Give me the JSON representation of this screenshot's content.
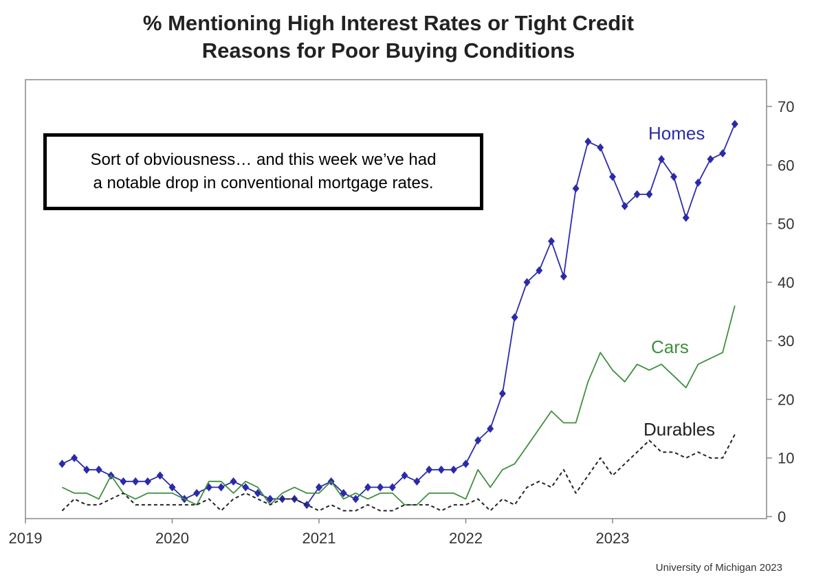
{
  "title_line1": "% Mentioning High Interest Rates or Tight Credit",
  "title_line2": "Reasons for Poor Buying Conditions",
  "annotation_line1": "Sort of obviousness… and this week we’ve had",
  "annotation_line2": "a notable drop in conventional mortgage rates.",
  "credit": "University of Michigan 2023",
  "colors": {
    "homes": "#2b2ba8",
    "cars": "#3f8f3f",
    "durables": "#222222",
    "axis": "#888888"
  },
  "chart_data": {
    "type": "line",
    "x_ticks": [
      "2019",
      "2020",
      "2021",
      "2022",
      "2023"
    ],
    "y_ticks": [
      0,
      10,
      20,
      30,
      40,
      50,
      60,
      70
    ],
    "ylim": [
      0,
      70
    ],
    "xlim": [
      2019.0,
      2024.0
    ],
    "y_axis_side": "right",
    "grid": false,
    "series": [
      {
        "name": "Homes",
        "style": "solid-with-markers",
        "x": [
          2019.25,
          2019.333,
          2019.417,
          2019.5,
          2019.583,
          2019.667,
          2019.75,
          2019.833,
          2019.917,
          2020.0,
          2020.083,
          2020.167,
          2020.25,
          2020.333,
          2020.417,
          2020.5,
          2020.583,
          2020.667,
          2020.75,
          2020.833,
          2020.917,
          2021.0,
          2021.083,
          2021.167,
          2021.25,
          2021.333,
          2021.417,
          2021.5,
          2021.583,
          2021.667,
          2021.75,
          2021.833,
          2021.917,
          2022.0,
          2022.083,
          2022.167,
          2022.25,
          2022.333,
          2022.417,
          2022.5,
          2022.583,
          2022.667,
          2022.75,
          2022.833,
          2022.917,
          2023.0,
          2023.083,
          2023.167,
          2023.25,
          2023.333,
          2023.417,
          2023.5,
          2023.583,
          2023.667,
          2023.75,
          2023.833
        ],
        "values": [
          9,
          10,
          8,
          8,
          7,
          6,
          6,
          6,
          7,
          5,
          3,
          4,
          5,
          5,
          6,
          5,
          4,
          3,
          3,
          3,
          2,
          5,
          6,
          4,
          3,
          5,
          5,
          5,
          7,
          6,
          8,
          8,
          8,
          9,
          13,
          15,
          21,
          34,
          40,
          42,
          47,
          41,
          56,
          64,
          63,
          58,
          53,
          55,
          55,
          61,
          58,
          51,
          57,
          61,
          62,
          67
        ]
      },
      {
        "name": "Cars",
        "style": "solid",
        "x": [
          2019.25,
          2019.333,
          2019.417,
          2019.5,
          2019.583,
          2019.667,
          2019.75,
          2019.833,
          2019.917,
          2020.0,
          2020.083,
          2020.167,
          2020.25,
          2020.333,
          2020.417,
          2020.5,
          2020.583,
          2020.667,
          2020.75,
          2020.833,
          2020.917,
          2021.0,
          2021.083,
          2021.167,
          2021.25,
          2021.333,
          2021.417,
          2021.5,
          2021.583,
          2021.667,
          2021.75,
          2021.833,
          2021.917,
          2022.0,
          2022.083,
          2022.167,
          2022.25,
          2022.333,
          2022.417,
          2022.5,
          2022.583,
          2022.667,
          2022.75,
          2022.833,
          2022.917,
          2023.0,
          2023.083,
          2023.167,
          2023.25,
          2023.333,
          2023.417,
          2023.5,
          2023.583,
          2023.667,
          2023.75,
          2023.833
        ],
        "values": [
          5,
          4,
          4,
          3,
          7,
          4,
          3,
          4,
          4,
          4,
          3,
          2,
          6,
          6,
          4,
          6,
          5,
          2,
          4,
          5,
          4,
          4,
          6,
          3,
          4,
          3,
          4,
          4,
          2,
          2,
          4,
          4,
          4,
          3,
          8,
          5,
          8,
          9,
          12,
          15,
          18,
          16,
          16,
          23,
          28,
          25,
          23,
          26,
          25,
          26,
          24,
          22,
          26,
          27,
          28,
          36
        ]
      },
      {
        "name": "Durables",
        "style": "dashed",
        "x": [
          2019.25,
          2019.333,
          2019.417,
          2019.5,
          2019.583,
          2019.667,
          2019.75,
          2019.833,
          2019.917,
          2020.0,
          2020.083,
          2020.167,
          2020.25,
          2020.333,
          2020.417,
          2020.5,
          2020.583,
          2020.667,
          2020.75,
          2020.833,
          2020.917,
          2021.0,
          2021.083,
          2021.167,
          2021.25,
          2021.333,
          2021.417,
          2021.5,
          2021.583,
          2021.667,
          2021.75,
          2021.833,
          2021.917,
          2022.0,
          2022.083,
          2022.167,
          2022.25,
          2022.333,
          2022.417,
          2022.5,
          2022.583,
          2022.667,
          2022.75,
          2022.833,
          2022.917,
          2023.0,
          2023.083,
          2023.167,
          2023.25,
          2023.333,
          2023.417,
          2023.5,
          2023.583,
          2023.667,
          2023.75,
          2023.833
        ],
        "values": [
          1,
          3,
          2,
          2,
          3,
          4,
          2,
          2,
          2,
          2,
          2,
          2,
          3,
          1,
          3,
          4,
          3,
          2,
          3,
          3,
          2,
          1,
          2,
          1,
          1,
          2,
          1,
          1,
          2,
          2,
          2,
          1,
          2,
          2,
          3,
          1,
          3,
          2,
          5,
          6,
          5,
          8,
          4,
          7,
          10,
          7,
          9,
          11,
          13,
          11,
          11,
          10,
          11,
          10,
          10,
          14
        ]
      }
    ]
  }
}
